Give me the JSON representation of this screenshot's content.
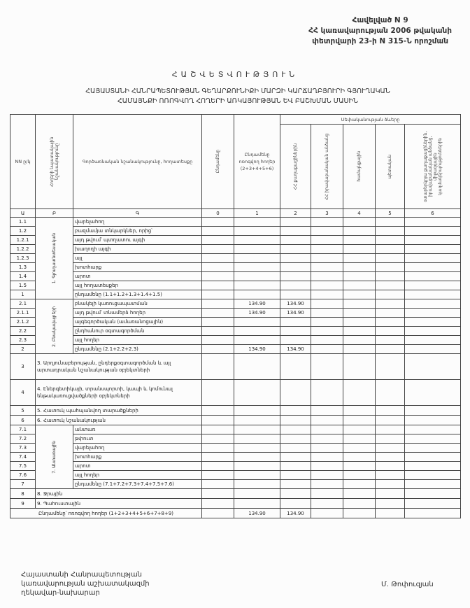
{
  "annex": {
    "line1": "Հավելված N 9",
    "line2": "ՀՀ կառավարության 2006 թվականի",
    "line3": "փետրվարի 23-ի N 315-Ն որոշման"
  },
  "title": "ՀԱՇՎԵՏՎՈՒԹՅՈՒՆ",
  "subtitle": {
    "line1": "ՀԱՅԱՍՏԱՆԻ ՀԱՆՐԱՊԵՏՈՒԹՅԱՆ ԳԵՂԱՐՔՈՒՆԻՔԻ ՄԱՐԶԻ ԿԱՐՃԱՂԲՅՈՒՐԻ ԳՅՈՒՂԱԿԱՆ",
    "line2": "ՀԱՄԱՅՆՔԻ ՈՌՈԳՎՈՂ ՀՈՂԵՐԻ ԱՌԿԱՅՈՒԹՅԱՆ ԵՎ ԲԱՇԽՄԱՆ ՄԱՍԻՆ"
  },
  "table": {
    "headers": {
      "nn": "NN ը/կ",
      "category": "Հողերի նպատակային նշանակությունը",
      "description": "Գործառնական նշանակությունը, հողատեսքը",
      "total": "Ընդամենը",
      "irrigated": "Ընդամենը ոռոգվող հողեր (2+3+4+5+6)",
      "ownership": "Սեփականության ձևերը",
      "c2": "ՀՀ քաղաքացիներին",
      "c3": "ՀՀ իրավաբանական անձանց",
      "c4": "համայնքային",
      "c5": "պետական",
      "c6": "օտարերկրյա քաղաքացիներին, իրավաբանական անձանց, միջազգային կազմակերպություններին"
    },
    "column_numbers": [
      "Ա",
      "Բ",
      "Գ",
      "0",
      "1",
      "2",
      "3",
      "4",
      "5",
      "6"
    ],
    "groups": [
      {
        "label": "1. Գյուղատնտեսական",
        "rows": [
          {
            "nn": "1.1",
            "name": "վարելահող",
            "total": "",
            "irrigated": "",
            "c2": ""
          },
          {
            "nn": "1.2",
            "name": "բազմամյա տնկարկներ, որից՝",
            "total": "",
            "irrigated": "",
            "c2": ""
          },
          {
            "nn": "1.2.1",
            "name": "այդ թվում՝ պտղատու այգի",
            "total": "",
            "irrigated": "",
            "c2": ""
          },
          {
            "nn": "1.2.2",
            "name": "խաղողի այգի",
            "total": "",
            "irrigated": "",
            "c2": ""
          },
          {
            "nn": "1.2.3",
            "name": "այլ",
            "total": "",
            "irrigated": "",
            "c2": ""
          },
          {
            "nn": "1.3",
            "name": "խոտհարք",
            "total": "",
            "irrigated": "",
            "c2": ""
          },
          {
            "nn": "1.4",
            "name": "արոտ",
            "total": "",
            "irrigated": "",
            "c2": ""
          },
          {
            "nn": "1.5",
            "name": "այլ հողատեսքեր",
            "total": "",
            "irrigated": "",
            "c2": ""
          },
          {
            "nn": "1",
            "name": "ընդամենը (1.1+1.2+1.3+1.4+1.5)",
            "total": "",
            "irrigated": "",
            "c2": ""
          }
        ]
      },
      {
        "label": "2. Բնակավայրերի",
        "rows": [
          {
            "nn": "2.1",
            "name": "բնակելի կառուցապատման",
            "total": "",
            "irrigated": "134.90",
            "c2": "134.90"
          },
          {
            "nn": "2.1.1",
            "name": "այդ թվում՝ տնամերձ հողեր",
            "total": "",
            "irrigated": "134.90",
            "c2": "134.90"
          },
          {
            "nn": "2.1.2",
            "name": "այգեգործական (ամառանոցային)",
            "total": "",
            "irrigated": "",
            "c2": ""
          },
          {
            "nn": "2.2",
            "name": "ընդհանուր օգտագործման",
            "total": "",
            "irrigated": "",
            "c2": ""
          },
          {
            "nn": "2.3",
            "name": "այլ հողեր",
            "total": "",
            "irrigated": "",
            "c2": ""
          },
          {
            "nn": "2",
            "name": "ընդամենը (2.1+2.2+2.3)",
            "total": "",
            "irrigated": "134.90",
            "c2": "134.90"
          }
        ]
      }
    ],
    "single_rows": [
      {
        "nn": "3",
        "name": "3. Արդյունաբերության, ընդերքօգտագործման և այլ արտադրական նշանակության օբյեկտների"
      },
      {
        "nn": "4",
        "name": "4. Էներգետիկայի, տրանսպորտի, կապի և կոմունալ ենթակառուցվածքների օբյեկտների"
      },
      {
        "nn": "5",
        "name": "5. Հատուկ պահպանվող տարածքների"
      },
      {
        "nn": "6",
        "name": "6. Հատուկ նշանակության"
      }
    ],
    "forest_group": {
      "label": "7. Անտառային",
      "rows": [
        {
          "nn": "7.1",
          "name": "անտառ"
        },
        {
          "nn": "7.2",
          "name": "թփուտ"
        },
        {
          "nn": "7.3",
          "name": "վարելահող"
        },
        {
          "nn": "7.4",
          "name": "խոտհարք"
        },
        {
          "nn": "7.5",
          "name": "արոտ"
        },
        {
          "nn": "7.6",
          "name": "այլ հողեր"
        },
        {
          "nn": "7",
          "name": "ընդամենը (7.1+7.2+7.3+7.4+7.5+7.6)"
        }
      ]
    },
    "tail_rows": [
      {
        "nn": "8",
        "name": "8. Ջրային"
      },
      {
        "nn": "9",
        "name": "9. Պահուստային"
      }
    ],
    "grand_total": {
      "name": "Ընդամենը՝ ոռոգվող հողեր (1+2+3+4+5+6+7+8+9)",
      "irrigated": "134.90",
      "c2": "134.90"
    }
  },
  "footer": {
    "line1": "Հայաստանի Հանրապետության",
    "line2": "կառավարության աշխատակազմի",
    "line3": "ղեկավար-նախարար",
    "signer": "Մ. Թոփուզյան"
  }
}
